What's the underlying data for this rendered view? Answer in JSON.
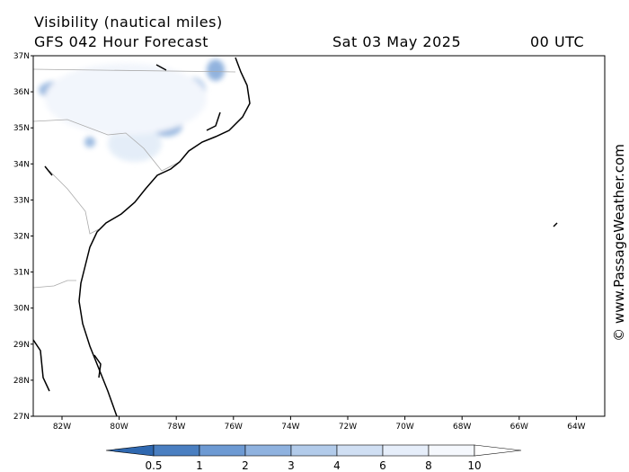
{
  "header": {
    "title": "Visibility (nautical miles)",
    "subtitle": "GFS 042 Hour Forecast",
    "date": "Sat 03 May 2025",
    "time": "00 UTC"
  },
  "map": {
    "lat_labels": [
      "37N",
      "36N",
      "35N",
      "34N",
      "33N",
      "32N",
      "31N",
      "30N",
      "29N",
      "28N",
      "27N"
    ],
    "lon_labels": [
      "82W",
      "80W",
      "78W",
      "76W",
      "74W",
      "72W",
      "70W",
      "68W",
      "66W",
      "64W"
    ]
  },
  "colorbar": {
    "labels": [
      "0.5",
      "1",
      "2",
      "3",
      "4",
      "6",
      "8",
      "10"
    ]
  },
  "watermark": "© www.PassageWeather.com"
}
